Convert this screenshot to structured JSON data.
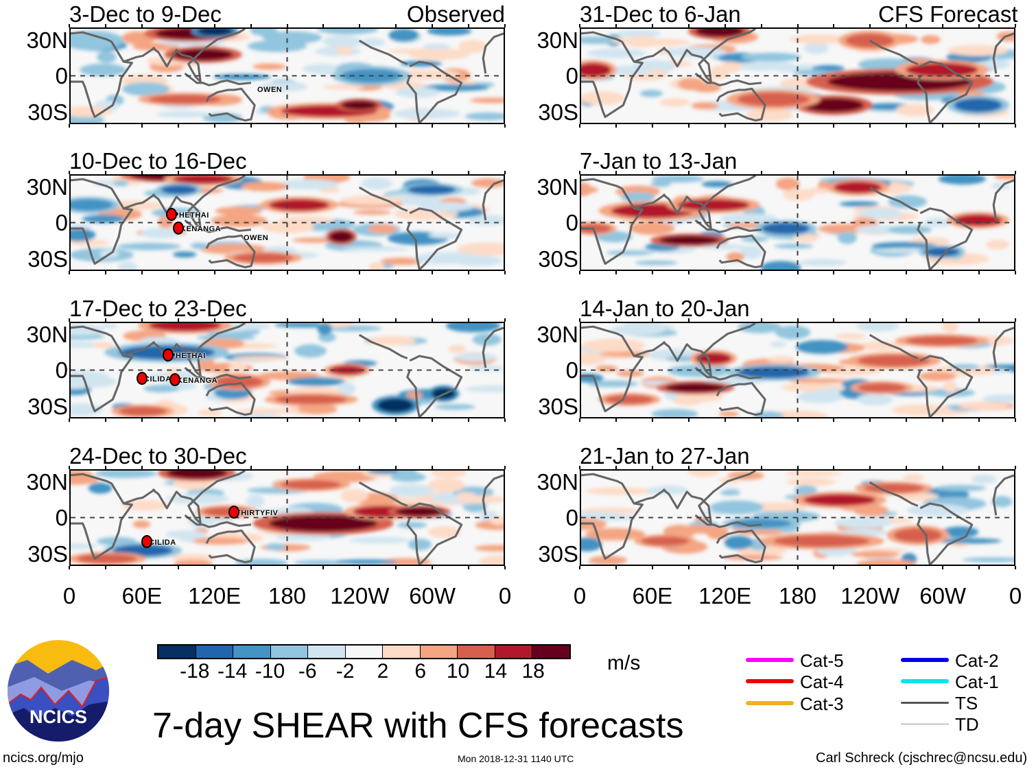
{
  "headers": {
    "observed": "Observed",
    "forecast": "CFS Forecast"
  },
  "panels": {
    "observed": [
      {
        "title": "3-Dec to 9-Dec",
        "storms": [
          "OWEN"
        ]
      },
      {
        "title": "10-Dec to 16-Dec",
        "storms": [
          "PHETHAI",
          "KENANGA",
          "OWEN"
        ]
      },
      {
        "title": "17-Dec to 23-Dec",
        "storms": [
          "PHETHAI",
          "CILIDA",
          "KENANGA"
        ]
      },
      {
        "title": "24-Dec to 30-Dec",
        "storms": [
          "THIRTYFIV",
          "CILIDA"
        ]
      }
    ],
    "forecast": [
      {
        "title": "31-Dec to 6-Jan"
      },
      {
        "title": "7-Jan to 13-Jan"
      },
      {
        "title": "14-Jan to 20-Jan"
      },
      {
        "title": "21-Jan to 27-Jan"
      }
    ]
  },
  "y_labels": [
    "30N",
    "0",
    "30S"
  ],
  "x_labels": [
    "0",
    "60E",
    "120E",
    "180",
    "120W",
    "60W",
    "0"
  ],
  "colorbar": {
    "colors": [
      "#053061",
      "#2166ac",
      "#4393c3",
      "#92c5de",
      "#d1e5f0",
      "#f7f7f7",
      "#fddbc7",
      "#f4a582",
      "#d6604d",
      "#b2182b",
      "#67001f"
    ],
    "labels": [
      "-18",
      "-14",
      "-10",
      "-6",
      "-2",
      "2",
      "6",
      "10",
      "14",
      "18"
    ],
    "units": "m/s"
  },
  "legend": [
    {
      "label": "Cat-5",
      "color": "#ff00ff"
    },
    {
      "label": "Cat-4",
      "color": "#ee0000"
    },
    {
      "label": "Cat-3",
      "color": "#f0b020"
    },
    {
      "label": "Cat-2",
      "color": "#0000ee"
    },
    {
      "label": "Cat-1",
      "color": "#00e5ee"
    },
    {
      "label": "TS",
      "color": "#555555"
    },
    {
      "label": "TD",
      "color": "#999999"
    }
  ],
  "logo_text": "NCICS",
  "main_title": "7-day SHEAR with CFS forecasts",
  "footer": {
    "url": "ncics.org/mjo",
    "timestamp": "Mon 2018-12-31 1140 UTC",
    "author": "Carl Schreck (cjschrec@ncsu.edu)"
  }
}
